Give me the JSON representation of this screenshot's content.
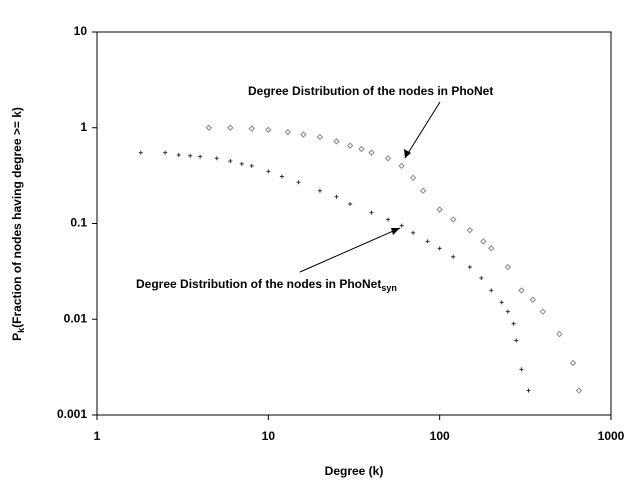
{
  "chart_data": {
    "type": "scatter",
    "xlabel": "Degree (k)",
    "ylabel": {
      "main": "P",
      "sub": "k",
      "rest": "(Fraction of nodes having degree >= k)"
    },
    "log_x": true,
    "log_y": true,
    "xlim": [
      1,
      1000
    ],
    "xticks": [
      1,
      10,
      100,
      1000
    ],
    "ylim": [
      0.001,
      10
    ],
    "yticks": [
      0.001,
      0.01,
      0.1,
      1,
      10
    ],
    "series": [
      {
        "marker": "diamond",
        "color": "#888888",
        "x": [
          4.5,
          6,
          8,
          10,
          13,
          16,
          20,
          25,
          30,
          35,
          40,
          50,
          60,
          70,
          80,
          100,
          120,
          150,
          180,
          200,
          250,
          300,
          350,
          400,
          500,
          600,
          650
        ],
        "values": [
          1,
          1,
          0.98,
          0.95,
          0.9,
          0.85,
          0.8,
          0.72,
          0.65,
          0.6,
          0.55,
          0.48,
          0.4,
          0.3,
          0.22,
          0.14,
          0.11,
          0.085,
          0.065,
          0.055,
          0.035,
          0.02,
          0.016,
          0.012,
          0.007,
          0.0035,
          0.0018
        ]
      },
      {
        "marker": "plus",
        "color": "#333333",
        "x": [
          1.8,
          2.5,
          3,
          3.5,
          4,
          5,
          6,
          7,
          8,
          10,
          12,
          15,
          20,
          25,
          30,
          40,
          50,
          60,
          70,
          85,
          100,
          120,
          150,
          175,
          200,
          230,
          250,
          270,
          280,
          300,
          330
        ],
        "values": [
          0.55,
          0.55,
          0.52,
          0.51,
          0.5,
          0.48,
          0.45,
          0.42,
          0.4,
          0.35,
          0.31,
          0.27,
          0.22,
          0.19,
          0.16,
          0.13,
          0.11,
          0.095,
          0.08,
          0.065,
          0.055,
          0.045,
          0.035,
          0.027,
          0.02,
          0.015,
          0.012,
          0.009,
          0.006,
          0.003,
          0.0018
        ]
      }
    ],
    "annotations": [
      {
        "text": "Degree Distribution of the nodes in PhoNet"
      },
      {
        "text": "Degree Distribution of the nodes in PhoNet",
        "sub": "syn"
      }
    ]
  }
}
